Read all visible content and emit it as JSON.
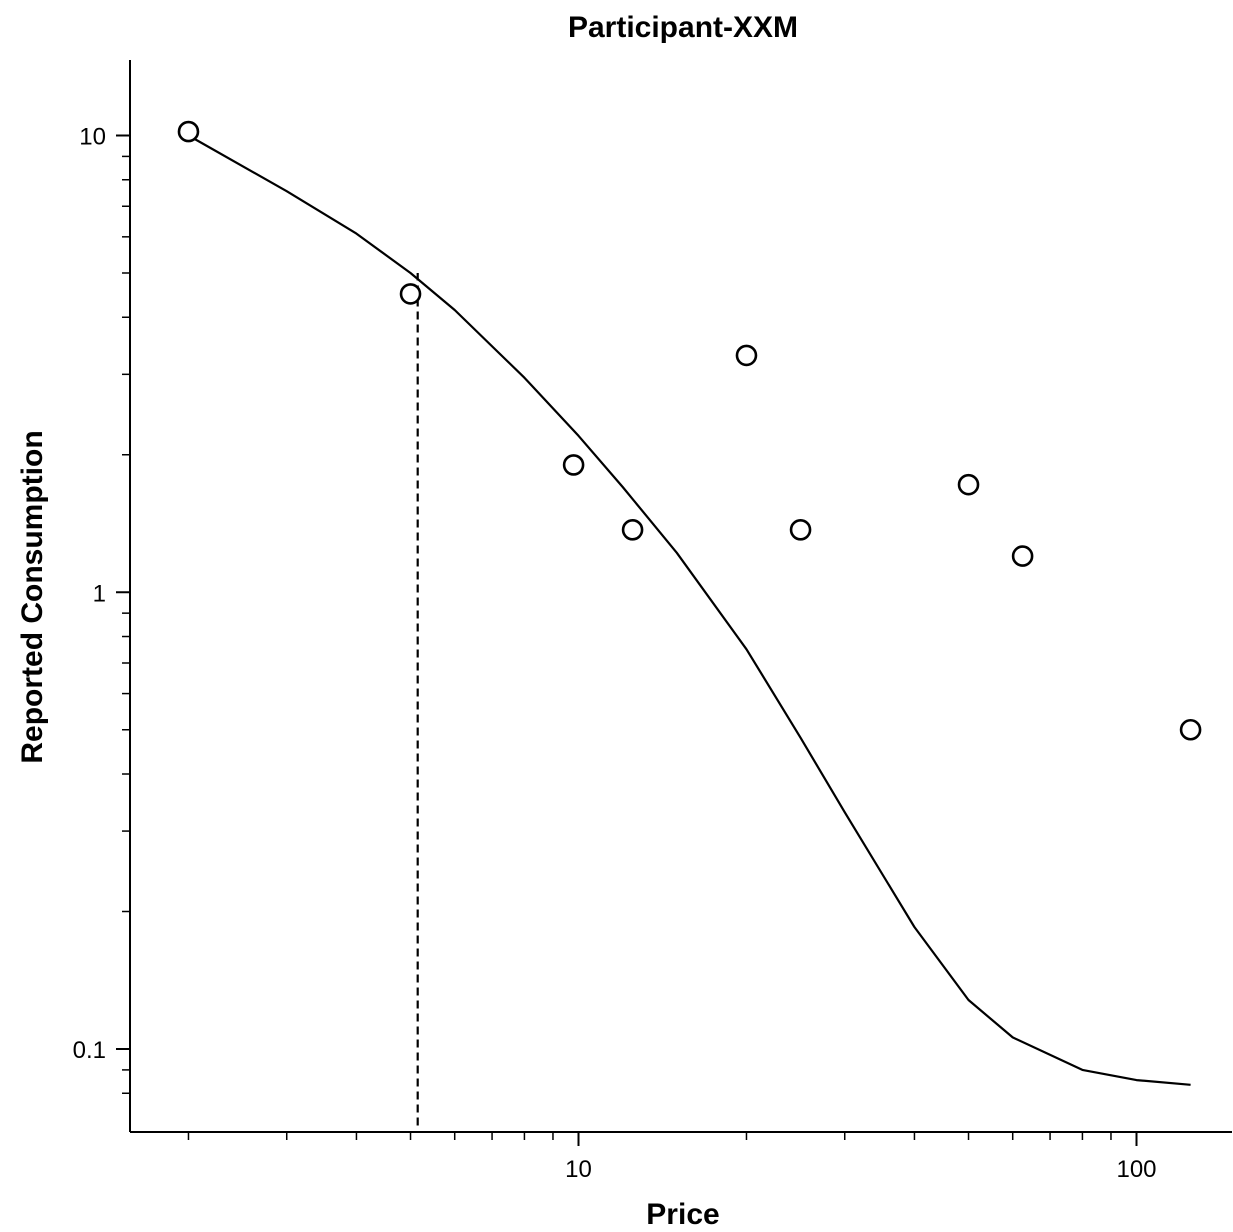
{
  "chart_data": {
    "type": "scatter",
    "title": "Participant-XXM",
    "xlabel": "Price",
    "ylabel": "Reported Consumption",
    "x_scale": "log",
    "y_scale": "log",
    "xlim": [
      1.65,
      150
    ],
    "ylim": [
      0.068,
      14.5
    ],
    "x_ticks_labeled": [
      {
        "value": 10,
        "label": "10"
      },
      {
        "value": 100,
        "label": "100"
      }
    ],
    "x_ticks_minor": [
      2,
      3,
      4,
      5,
      6,
      7,
      8,
      9,
      20,
      30,
      40,
      50,
      60,
      70,
      80,
      90
    ],
    "y_ticks_labeled": [
      {
        "value": 0.1,
        "label": "0.1"
      },
      {
        "value": 1,
        "label": "1"
      },
      {
        "value": 10,
        "label": "10"
      }
    ],
    "y_ticks_minor": [
      0.08,
      0.09,
      0.2,
      0.3,
      0.4,
      0.5,
      0.6,
      0.7,
      0.8,
      0.9,
      2,
      3,
      4,
      5,
      6,
      7,
      8,
      9
    ],
    "grid": false,
    "legend": "none",
    "series": [
      {
        "type": "scatter",
        "marker": "open-circle",
        "x": [
          2,
          5,
          9.8,
          12.5,
          20,
          25,
          50,
          62.5,
          125
        ],
        "y": [
          10.2,
          4.5,
          1.9,
          1.37,
          3.3,
          1.37,
          1.72,
          1.2,
          0.5
        ]
      },
      {
        "type": "line",
        "style": "solid",
        "x": [
          2,
          3,
          4,
          5,
          6,
          8,
          10,
          12,
          15,
          20,
          25,
          30,
          40,
          50,
          60,
          80,
          100,
          125
        ],
        "y": [
          10,
          7.55,
          6.1,
          5.0,
          4.15,
          2.95,
          2.2,
          1.7,
          1.22,
          0.75,
          0.48,
          0.33,
          0.185,
          0.128,
          0.106,
          0.09,
          0.0855,
          0.0835
        ]
      },
      {
        "type": "line",
        "style": "dashed",
        "x": [
          5.15,
          5.15
        ],
        "y": [
          0.068,
          5.0
        ]
      }
    ]
  }
}
